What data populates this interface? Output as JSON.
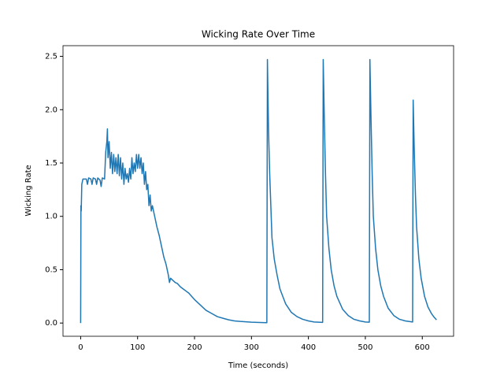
{
  "chart_data": {
    "type": "line",
    "title": "Wicking Rate Over Time",
    "xlabel": "Time (seconds)",
    "ylabel": "Wicking Rate",
    "color": "#1f77b4",
    "x": [
      0,
      0.5,
      1,
      2,
      4,
      10,
      12,
      14,
      18,
      20,
      22,
      26,
      28,
      30,
      34,
      36,
      38,
      42,
      44,
      46,
      47,
      48,
      50,
      52,
      54,
      56,
      58,
      60,
      62,
      64,
      66,
      68,
      70,
      72,
      74,
      76,
      78,
      80,
      82,
      84,
      86,
      88,
      90,
      92,
      94,
      96,
      98,
      100,
      102,
      104,
      106,
      108,
      110,
      112,
      114,
      116,
      118,
      120,
      122,
      124,
      126,
      130,
      134,
      138,
      142,
      146,
      150,
      154,
      156,
      158,
      162,
      166,
      170,
      175,
      180,
      185,
      190,
      195,
      200,
      210,
      220,
      230,
      240,
      250,
      260,
      270,
      280,
      300,
      320,
      327,
      328,
      330,
      332,
      334,
      336,
      340,
      345,
      350,
      355,
      360,
      370,
      380,
      390,
      400,
      410,
      425,
      426,
      428,
      430,
      432,
      436,
      440,
      445,
      450,
      460,
      470,
      480,
      490,
      500,
      507,
      508,
      510,
      512,
      514,
      518,
      522,
      527,
      532,
      540,
      550,
      560,
      570,
      583,
      584,
      586,
      588,
      590,
      594,
      598,
      604,
      610,
      616,
      620,
      625
    ],
    "values": [
      0,
      1.1,
      1.05,
      1.3,
      1.35,
      1.35,
      1.3,
      1.36,
      1.35,
      1.3,
      1.36,
      1.35,
      1.3,
      1.36,
      1.34,
      1.28,
      1.36,
      1.35,
      1.6,
      1.7,
      1.82,
      1.55,
      1.7,
      1.45,
      1.6,
      1.4,
      1.58,
      1.42,
      1.55,
      1.4,
      1.58,
      1.38,
      1.55,
      1.35,
      1.5,
      1.3,
      1.45,
      1.35,
      1.4,
      1.32,
      1.45,
      1.35,
      1.55,
      1.4,
      1.5,
      1.42,
      1.58,
      1.45,
      1.58,
      1.45,
      1.55,
      1.4,
      1.5,
      1.3,
      1.42,
      1.25,
      1.3,
      1.1,
      1.2,
      1.05,
      1.1,
      1.0,
      0.9,
      0.82,
      0.72,
      0.62,
      0.55,
      0.45,
      0.38,
      0.42,
      0.4,
      0.38,
      0.37,
      0.34,
      0.32,
      0.3,
      0.28,
      0.25,
      0.22,
      0.17,
      0.12,
      0.09,
      0.06,
      0.045,
      0.03,
      0.02,
      0.015,
      0.008,
      0.004,
      0.003,
      2.47,
      1.8,
      1.4,
      1.1,
      0.8,
      0.6,
      0.45,
      0.32,
      0.25,
      0.18,
      0.1,
      0.06,
      0.035,
      0.02,
      0.01,
      0.006,
      2.47,
      1.9,
      1.4,
      1.0,
      0.7,
      0.5,
      0.35,
      0.25,
      0.13,
      0.07,
      0.035,
      0.02,
      0.01,
      0.008,
      2.47,
      1.9,
      1.4,
      1.0,
      0.7,
      0.5,
      0.35,
      0.25,
      0.14,
      0.07,
      0.035,
      0.02,
      0.01,
      2.09,
      1.6,
      1.2,
      0.9,
      0.6,
      0.42,
      0.25,
      0.15,
      0.09,
      0.06,
      0.03
    ],
    "xlim": [
      -31,
      655
    ],
    "ylim": [
      -0.124,
      2.6
    ],
    "xticks": [
      0,
      100,
      200,
      300,
      400,
      500,
      600
    ],
    "yticks": [
      {
        "value": 0,
        "label": "0.0"
      },
      0.5,
      {
        "value": 1,
        "label": "1.0"
      },
      1.5,
      {
        "value": 2,
        "label": "2.0"
      },
      2.5
    ]
  }
}
